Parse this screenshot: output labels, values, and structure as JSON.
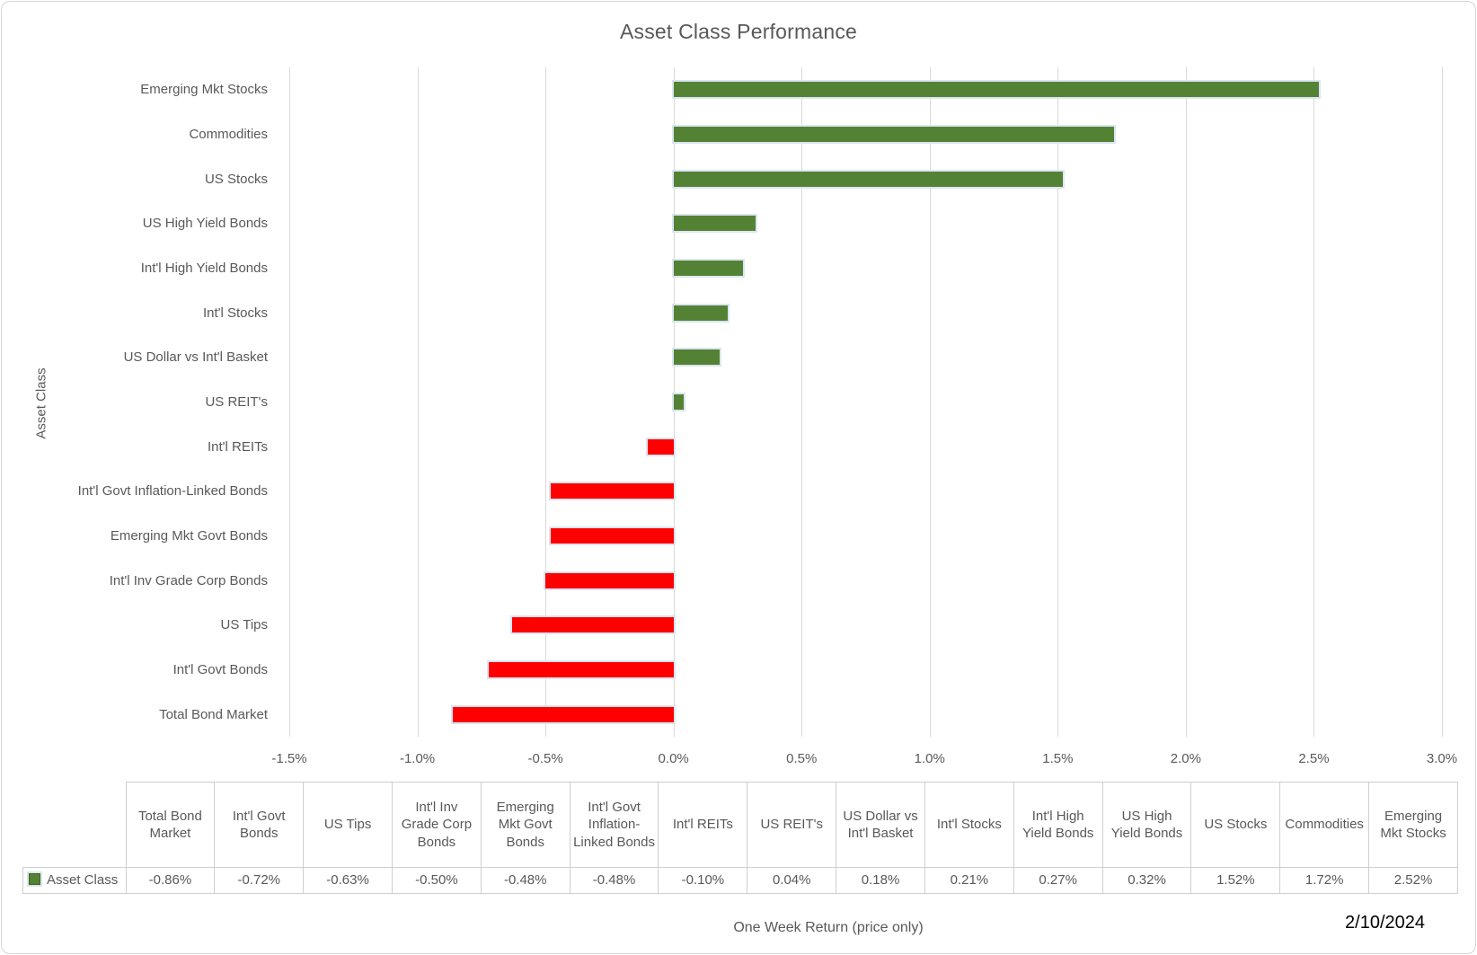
{
  "title": "Asset Class Performance",
  "date": "2/10/2024",
  "legend_label": "Asset Class",
  "axis": {
    "x_title": "One Week Return (price only)",
    "y_title": "Asset Class",
    "ticks": [
      "-1.5%",
      "-1.0%",
      "-0.5%",
      "0.0%",
      "0.5%",
      "1.0%",
      "1.5%",
      "2.0%",
      "2.5%",
      "3.0%"
    ]
  },
  "colors": {
    "positive": "#548235",
    "negative": "#FF0000",
    "gridline": "#D9D9D9",
    "text": "#595959",
    "bar_halo": "#DBE5F1"
  },
  "chart_data": {
    "type": "bar",
    "orientation": "horizontal",
    "title": "Asset Class Performance",
    "xlabel": "One Week Return (price only)",
    "ylabel": "Asset Class",
    "xlim": [
      -1.5,
      3.0
    ],
    "x_tick_step": 0.5,
    "grid": true,
    "series_name": "Asset Class",
    "legend_position": "data-table",
    "categories": [
      "Emerging Mkt Stocks",
      "Commodities",
      "US Stocks",
      "US High Yield Bonds",
      "Int'l High Yield Bonds",
      "Int'l Stocks",
      "US Dollar vs Int'l Basket",
      "US REIT's",
      "Int'l REITs",
      "Int'l Govt Inflation-Linked Bonds",
      "Emerging Mkt Govt Bonds",
      "Int'l Inv Grade Corp Bonds",
      "US Tips",
      "Int'l Govt Bonds",
      "Total Bond Market"
    ],
    "values": [
      2.52,
      1.72,
      1.52,
      0.32,
      0.27,
      0.21,
      0.18,
      0.04,
      -0.1,
      -0.48,
      -0.48,
      -0.5,
      -0.63,
      -0.72,
      -0.86
    ]
  },
  "table": {
    "columns": [
      {
        "label": "Total Bond Market",
        "value": "-0.86%"
      },
      {
        "label": "Int'l Govt Bonds",
        "value": "-0.72%"
      },
      {
        "label": "US Tips",
        "value": "-0.63%"
      },
      {
        "label": "Int'l Inv Grade Corp Bonds",
        "value": "-0.50%"
      },
      {
        "label": "Emerging Mkt Govt Bonds",
        "value": "-0.48%"
      },
      {
        "label": "Int'l Govt Inflation-Linked Bonds",
        "value": "-0.48%"
      },
      {
        "label": "Int'l REITs",
        "value": "-0.10%"
      },
      {
        "label": "US REIT's",
        "value": "0.04%"
      },
      {
        "label": "US Dollar vs Int'l Basket",
        "value": "0.18%"
      },
      {
        "label": "Int'l Stocks",
        "value": "0.21%"
      },
      {
        "label": "Int'l High Yield Bonds",
        "value": "0.27%"
      },
      {
        "label": "US High Yield Bonds",
        "value": "0.32%"
      },
      {
        "label": "US Stocks",
        "value": "1.52%"
      },
      {
        "label": "Commodities",
        "value": "1.72%"
      },
      {
        "label": "Emerging Mkt Stocks",
        "value": "2.52%"
      }
    ]
  }
}
